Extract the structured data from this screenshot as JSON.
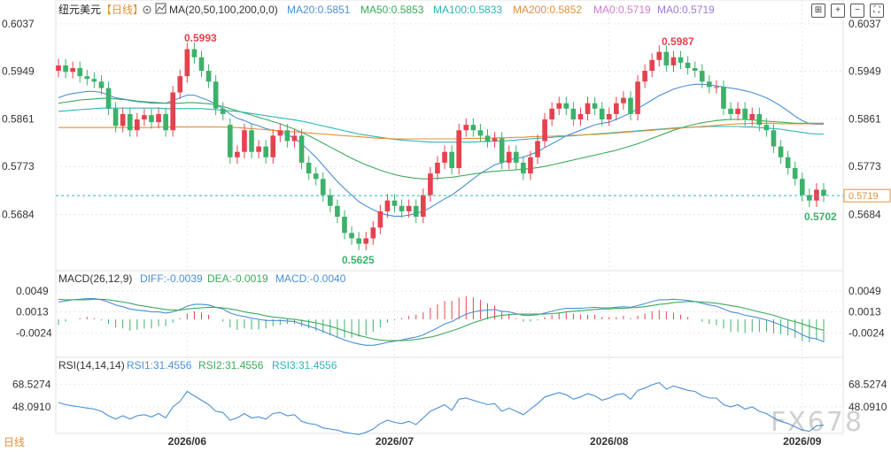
{
  "header": {
    "symbol_label": "纽元美元",
    "period_label": "【日线】",
    "settings_icon": "gear-icon"
  },
  "legends": {
    "ma": {
      "title": "MA(20,50,100,200,0,0)",
      "items": [
        {
          "label": "MA20:0.5851",
          "color": "#4a8fd6"
        },
        {
          "label": "MA50:0.5853",
          "color": "#3aaa5a"
        },
        {
          "label": "MA100:0.5833",
          "color": "#2bb5b5"
        },
        {
          "label": "MA200:0.5852",
          "color": "#e0903a"
        },
        {
          "label": "MA0:0.5719",
          "color": "#d07ad0"
        },
        {
          "label": "MA0:0.5719",
          "color": "#9a7ad8"
        }
      ]
    },
    "macd": {
      "title": "MACD(26,12,9)",
      "items": [
        {
          "label": "DIFF:-0.0039",
          "color": "#4a8fd6"
        },
        {
          "label": "DEA:-0.0019",
          "color": "#3aaa5a"
        },
        {
          "label": "MACD:-0.0040",
          "color": "#4a8fd6"
        }
      ]
    },
    "rsi": {
      "title": "RSI(14,14,14)",
      "items": [
        {
          "label": "RSI1:31.4556",
          "color": "#4a8fd6"
        },
        {
          "label": "RSI2:31.4556",
          "color": "#3aaa5a"
        },
        {
          "label": "RSI3:31.4556",
          "color": "#2bb5b5"
        }
      ]
    }
  },
  "price_axis": {
    "ticks": [
      0.6037,
      0.5949,
      0.5861,
      0.5773,
      0.5684
    ],
    "tick_labels": [
      "0.6037",
      "0.5949",
      "0.5861",
      "0.5773",
      "0.5684"
    ],
    "current_value": "0.5719",
    "ylim": [
      0.559,
      0.6045
    ]
  },
  "macd_axis": {
    "tick_labels": [
      "0.0049",
      "0.0013",
      "-0.0024"
    ],
    "ticks": [
      0.0049,
      0.0013,
      -0.0024
    ],
    "ylim": [
      -0.006,
      0.006
    ]
  },
  "rsi_axis": {
    "tick_labels": [
      "68.5274",
      "48.0910"
    ],
    "ticks": [
      68.5274,
      48.091
    ],
    "ylim": [
      24,
      80
    ]
  },
  "x_axis": {
    "labels": [
      {
        "text": "2026/06",
        "index": 18
      },
      {
        "text": "2026/07",
        "index": 47
      },
      {
        "text": "2026/08",
        "index": 77
      },
      {
        "text": "2026/09",
        "index": 104
      }
    ]
  },
  "annotations": {
    "high1": "0.5993",
    "high2": "0.5987",
    "low1": "0.5625",
    "low2": "0.5702"
  },
  "bottom_label": "日线",
  "watermark": "FX678",
  "colors": {
    "up": "#e5424f",
    "down": "#3db16a",
    "ma20": "#4a8fd6",
    "ma50": "#3aaa5a",
    "ma100": "#2bb5b5",
    "ma200": "#e0903a",
    "grid": "#e8e8e8"
  },
  "chart_data": {
    "type": "candlestick",
    "closes": [
      0.596,
      0.5948,
      0.5955,
      0.594,
      0.5935,
      0.593,
      0.5918,
      0.588,
      0.5848,
      0.587,
      0.584,
      0.586,
      0.5868,
      0.5855,
      0.587,
      0.584,
      0.591,
      0.594,
      0.599,
      0.5975,
      0.595,
      0.593,
      0.588,
      0.587,
      0.579,
      0.58,
      0.584,
      0.58,
      0.581,
      0.579,
      0.583,
      0.584,
      0.582,
      0.583,
      0.578,
      0.576,
      0.575,
      0.572,
      0.57,
      0.568,
      0.565,
      0.564,
      0.563,
      0.564,
      0.566,
      0.569,
      0.571,
      0.57,
      0.569,
      0.57,
      0.568,
      0.572,
      0.576,
      0.578,
      0.58,
      0.577,
      0.584,
      0.585,
      0.584,
      0.583,
      0.582,
      0.5825,
      0.578,
      0.58,
      0.578,
      0.576,
      0.579,
      0.582,
      0.586,
      0.588,
      0.589,
      0.588,
      0.586,
      0.587,
      0.589,
      0.588,
      0.586,
      0.587,
      0.589,
      0.59,
      0.587,
      0.593,
      0.595,
      0.597,
      0.5985,
      0.596,
      0.5975,
      0.5965,
      0.5955,
      0.595,
      0.593,
      0.592,
      0.592,
      0.588,
      0.587,
      0.588,
      0.586,
      0.587,
      0.585,
      0.584,
      0.581,
      0.579,
      0.577,
      0.575,
      0.572,
      0.571,
      0.573,
      0.5719
    ],
    "opens": [
      0.595,
      0.596,
      0.5948,
      0.5955,
      0.594,
      0.5935,
      0.593,
      0.5918,
      0.588,
      0.5848,
      0.587,
      0.584,
      0.586,
      0.5868,
      0.5855,
      0.587,
      0.584,
      0.591,
      0.594,
      0.599,
      0.5975,
      0.595,
      0.593,
      0.588,
      0.585,
      0.579,
      0.58,
      0.584,
      0.58,
      0.581,
      0.579,
      0.583,
      0.584,
      0.582,
      0.583,
      0.578,
      0.576,
      0.575,
      0.572,
      0.57,
      0.568,
      0.565,
      0.564,
      0.563,
      0.564,
      0.566,
      0.569,
      0.571,
      0.57,
      0.569,
      0.57,
      0.568,
      0.572,
      0.576,
      0.578,
      0.58,
      0.577,
      0.584,
      0.585,
      0.584,
      0.583,
      0.582,
      0.5825,
      0.578,
      0.58,
      0.578,
      0.576,
      0.579,
      0.582,
      0.586,
      0.588,
      0.589,
      0.588,
      0.586,
      0.587,
      0.589,
      0.588,
      0.586,
      0.587,
      0.589,
      0.59,
      0.587,
      0.593,
      0.595,
      0.597,
      0.5985,
      0.596,
      0.5975,
      0.5965,
      0.5955,
      0.595,
      0.593,
      0.592,
      0.592,
      0.588,
      0.587,
      0.588,
      0.586,
      0.587,
      0.585,
      0.584,
      0.581,
      0.579,
      0.577,
      0.575,
      0.572,
      0.571,
      0.573
    ],
    "highs_note": "",
    "ma20": [
      0.59,
      0.5905,
      0.5908,
      0.591,
      0.5912,
      0.5912,
      0.591,
      0.5905,
      0.59,
      0.5898,
      0.5895,
      0.5893,
      0.5892,
      0.589,
      0.589,
      0.589,
      0.5895,
      0.59,
      0.5905,
      0.5905,
      0.59,
      0.5895,
      0.5888,
      0.588,
      0.587,
      0.5862,
      0.5858,
      0.5852,
      0.5848,
      0.5843,
      0.584,
      0.5838,
      0.5832,
      0.5825,
      0.5815,
      0.5803,
      0.579,
      0.5775,
      0.576,
      0.5745,
      0.5732,
      0.572,
      0.5708,
      0.57,
      0.5693,
      0.5687,
      0.5683,
      0.5681,
      0.5681,
      0.5683,
      0.5686,
      0.569,
      0.5697,
      0.5705,
      0.5713,
      0.572,
      0.573,
      0.574,
      0.575,
      0.576,
      0.5768,
      0.5776,
      0.578,
      0.5785,
      0.5788,
      0.579,
      0.5795,
      0.58,
      0.5808,
      0.5815,
      0.5822,
      0.583,
      0.5835,
      0.584,
      0.5845,
      0.585,
      0.5853,
      0.5855,
      0.586,
      0.5866,
      0.5872,
      0.588,
      0.5888,
      0.5896,
      0.5904,
      0.591,
      0.5916,
      0.592,
      0.5923,
      0.5925,
      0.5925,
      0.5924,
      0.5922,
      0.592,
      0.5918,
      0.5916,
      0.5913,
      0.591,
      0.5905,
      0.59,
      0.5893,
      0.5885,
      0.5876,
      0.5866,
      0.5858,
      0.5852,
      0.5851,
      0.5851
    ],
    "ma50": [
      0.589,
      0.5892,
      0.5894,
      0.5896,
      0.5897,
      0.5898,
      0.5899,
      0.5899,
      0.5898,
      0.5897,
      0.5896,
      0.5894,
      0.5893,
      0.5892,
      0.5891,
      0.589,
      0.589,
      0.589,
      0.5891,
      0.5891,
      0.589,
      0.5889,
      0.5887,
      0.5884,
      0.588,
      0.5876,
      0.5872,
      0.5868,
      0.5864,
      0.586,
      0.5856,
      0.5852,
      0.5847,
      0.5842,
      0.5836,
      0.583,
      0.5823,
      0.5816,
      0.5809,
      0.5802,
      0.5795,
      0.5788,
      0.5782,
      0.5776,
      0.5771,
      0.5766,
      0.5762,
      0.5758,
      0.5755,
      0.5753,
      0.5751,
      0.575,
      0.575,
      0.5751,
      0.5752,
      0.5753,
      0.5755,
      0.5757,
      0.5759,
      0.5761,
      0.5763,
      0.5764,
      0.5765,
      0.5766,
      0.5767,
      0.5768,
      0.5769,
      0.5771,
      0.5773,
      0.5776,
      0.5779,
      0.5782,
      0.5785,
      0.5788,
      0.5791,
      0.5794,
      0.5797,
      0.58,
      0.5803,
      0.5807,
      0.5811,
      0.5815,
      0.582,
      0.5825,
      0.583,
      0.5835,
      0.584,
      0.5844,
      0.5848,
      0.5851,
      0.5854,
      0.5856,
      0.5858,
      0.5859,
      0.586,
      0.586,
      0.586,
      0.5859,
      0.5858,
      0.5857,
      0.5856,
      0.5855,
      0.5854,
      0.5853,
      0.5853,
      0.5853,
      0.5853,
      0.5853
    ],
    "ma100": [
      0.5875,
      0.5876,
      0.5877,
      0.5878,
      0.5879,
      0.588,
      0.5881,
      0.5881,
      0.5881,
      0.5881,
      0.5881,
      0.5881,
      0.5881,
      0.5881,
      0.5881,
      0.588,
      0.588,
      0.588,
      0.588,
      0.588,
      0.588,
      0.5879,
      0.5878,
      0.5877,
      0.5876,
      0.5875,
      0.5873,
      0.5871,
      0.5869,
      0.5867,
      0.5865,
      0.5863,
      0.5861,
      0.5859,
      0.5857,
      0.5854,
      0.5851,
      0.5848,
      0.5845,
      0.5842,
      0.5839,
      0.5836,
      0.5833,
      0.5831,
      0.5829,
      0.5827,
      0.5825,
      0.5823,
      0.5822,
      0.5821,
      0.582,
      0.5819,
      0.5818,
      0.5818,
      0.5818,
      0.5818,
      0.5818,
      0.5818,
      0.5818,
      0.5819,
      0.5819,
      0.582,
      0.582,
      0.5821,
      0.5822,
      0.5823,
      0.5824,
      0.5825,
      0.5826,
      0.5827,
      0.5828,
      0.5829,
      0.583,
      0.5831,
      0.5832,
      0.5833,
      0.5834,
      0.5835,
      0.5836,
      0.5837,
      0.5838,
      0.5839,
      0.584,
      0.5841,
      0.5842,
      0.5843,
      0.5844,
      0.5845,
      0.5845,
      0.5846,
      0.5846,
      0.5847,
      0.5847,
      0.5847,
      0.5847,
      0.5847,
      0.5846,
      0.5846,
      0.5845,
      0.5844,
      0.5843,
      0.5842,
      0.584,
      0.5838,
      0.5836,
      0.5834,
      0.5833,
      0.5833
    ],
    "ma200": [
      0.5845,
      0.5845,
      0.5845,
      0.5845,
      0.5845,
      0.5845,
      0.5845,
      0.5845,
      0.5845,
      0.5845,
      0.5845,
      0.5845,
      0.5845,
      0.5845,
      0.5846,
      0.5846,
      0.5846,
      0.5846,
      0.5846,
      0.5846,
      0.5846,
      0.5846,
      0.5846,
      0.5846,
      0.5845,
      0.5845,
      0.5844,
      0.5843,
      0.5842,
      0.5841,
      0.584,
      0.5839,
      0.5838,
      0.5837,
      0.5836,
      0.5835,
      0.5834,
      0.5833,
      0.5832,
      0.5831,
      0.583,
      0.5829,
      0.5828,
      0.5827,
      0.5826,
      0.5825,
      0.5825,
      0.5824,
      0.5824,
      0.5824,
      0.5824,
      0.5824,
      0.5824,
      0.5824,
      0.5824,
      0.5824,
      0.5824,
      0.5825,
      0.5825,
      0.5825,
      0.5825,
      0.5826,
      0.5826,
      0.5826,
      0.5827,
      0.5827,
      0.5828,
      0.5828,
      0.5829,
      0.5829,
      0.583,
      0.583,
      0.5831,
      0.5831,
      0.5832,
      0.5832,
      0.5833,
      0.5834,
      0.5835,
      0.5836,
      0.5837,
      0.5838,
      0.5839,
      0.584,
      0.5841,
      0.5842,
      0.5843,
      0.5844,
      0.5845,
      0.5846,
      0.5847,
      0.5848,
      0.5849,
      0.585,
      0.5851,
      0.5852,
      0.5852,
      0.5853,
      0.5853,
      0.5853,
      0.5853,
      0.5852,
      0.5852,
      0.5852,
      0.5852,
      0.5852,
      0.5852,
      0.5852
    ],
    "macd_diff": [
      0.003,
      0.0032,
      0.0034,
      0.0035,
      0.0036,
      0.0036,
      0.0034,
      0.003,
      0.0025,
      0.0022,
      0.0018,
      0.0016,
      0.0015,
      0.0013,
      0.0013,
      0.0011,
      0.0013,
      0.0017,
      0.0023,
      0.0026,
      0.0026,
      0.0025,
      0.0021,
      0.0018,
      0.0011,
      0.0007,
      0.0005,
      0.0002,
      0.0,
      -0.0002,
      -0.0002,
      -0.0002,
      -0.0003,
      -0.0004,
      -0.0008,
      -0.0012,
      -0.0016,
      -0.0021,
      -0.0026,
      -0.0031,
      -0.0036,
      -0.004,
      -0.0043,
      -0.0045,
      -0.0045,
      -0.0043,
      -0.004,
      -0.0038,
      -0.0036,
      -0.0033,
      -0.0031,
      -0.0027,
      -0.0021,
      -0.0015,
      -0.0008,
      -0.0004,
      0.0003,
      0.0009,
      0.0013,
      0.0015,
      0.0016,
      0.0017,
      0.0014,
      0.0013,
      0.001,
      0.0007,
      0.0007,
      0.0008,
      0.0011,
      0.0014,
      0.0017,
      0.0019,
      0.0019,
      0.0019,
      0.002,
      0.0021,
      0.002,
      0.002,
      0.0021,
      0.0022,
      0.0021,
      0.0024,
      0.0027,
      0.0031,
      0.0034,
      0.0034,
      0.0035,
      0.0034,
      0.0033,
      0.0031,
      0.0028,
      0.0025,
      0.0023,
      0.0018,
      0.0013,
      0.0011,
      0.0007,
      0.0005,
      0.0002,
      -0.0001,
      -0.0005,
      -0.001,
      -0.0015,
      -0.002,
      -0.0027,
      -0.0032,
      -0.0034,
      -0.0039
    ],
    "macd_dea": [
      0.0035,
      0.0034,
      0.0034,
      0.0034,
      0.0034,
      0.0035,
      0.0035,
      0.0034,
      0.0032,
      0.003,
      0.0028,
      0.0025,
      0.0023,
      0.0021,
      0.0019,
      0.0017,
      0.0016,
      0.0016,
      0.0018,
      0.0019,
      0.002,
      0.0021,
      0.0021,
      0.002,
      0.0018,
      0.0016,
      0.0013,
      0.0011,
      0.0009,
      0.0006,
      0.0004,
      0.0003,
      0.0001,
      0.0,
      -0.0002,
      -0.0004,
      -0.0006,
      -0.0009,
      -0.0012,
      -0.0016,
      -0.002,
      -0.0024,
      -0.0028,
      -0.0031,
      -0.0034,
      -0.0036,
      -0.0037,
      -0.0037,
      -0.0037,
      -0.0036,
      -0.0035,
      -0.0033,
      -0.0031,
      -0.0028,
      -0.0024,
      -0.002,
      -0.0016,
      -0.0011,
      -0.0006,
      -0.0002,
      0.0002,
      0.0005,
      0.0007,
      0.0008,
      0.0009,
      0.0009,
      0.0009,
      0.0009,
      0.0009,
      0.001,
      0.0011,
      0.0013,
      0.0014,
      0.0015,
      0.0016,
      0.0017,
      0.0018,
      0.0018,
      0.0019,
      0.0019,
      0.002,
      0.0021,
      0.0022,
      0.0024,
      0.0026,
      0.0027,
      0.0029,
      0.003,
      0.0031,
      0.0031,
      0.003,
      0.0029,
      0.0028,
      0.0026,
      0.0024,
      0.0022,
      0.0019,
      0.0016,
      0.0013,
      0.001,
      0.0007,
      0.0003,
      -0.0001,
      -0.0004,
      -0.0008,
      -0.0012,
      -0.0016,
      -0.0019
    ],
    "rsi": [
      52,
      50,
      49,
      48,
      47,
      46,
      44,
      40,
      37,
      40,
      37,
      40,
      41,
      39,
      42,
      38,
      48,
      53,
      62,
      58,
      54,
      50,
      44,
      43,
      36,
      38,
      42,
      38,
      39,
      37,
      42,
      43,
      40,
      41,
      35,
      33,
      32,
      29,
      28,
      27,
      25,
      24,
      23,
      25,
      28,
      33,
      36,
      34,
      33,
      35,
      32,
      38,
      44,
      47,
      50,
      45,
      55,
      56,
      54,
      52,
      50,
      51,
      44,
      47,
      44,
      41,
      46,
      51,
      57,
      59,
      61,
      59,
      55,
      57,
      60,
      58,
      54,
      56,
      59,
      60,
      55,
      63,
      65,
      68,
      70,
      64,
      67,
      65,
      63,
      62,
      58,
      56,
      56,
      50,
      48,
      50,
      46,
      48,
      44,
      42,
      38,
      35,
      33,
      30,
      27,
      26,
      31,
      31.4556
    ]
  }
}
